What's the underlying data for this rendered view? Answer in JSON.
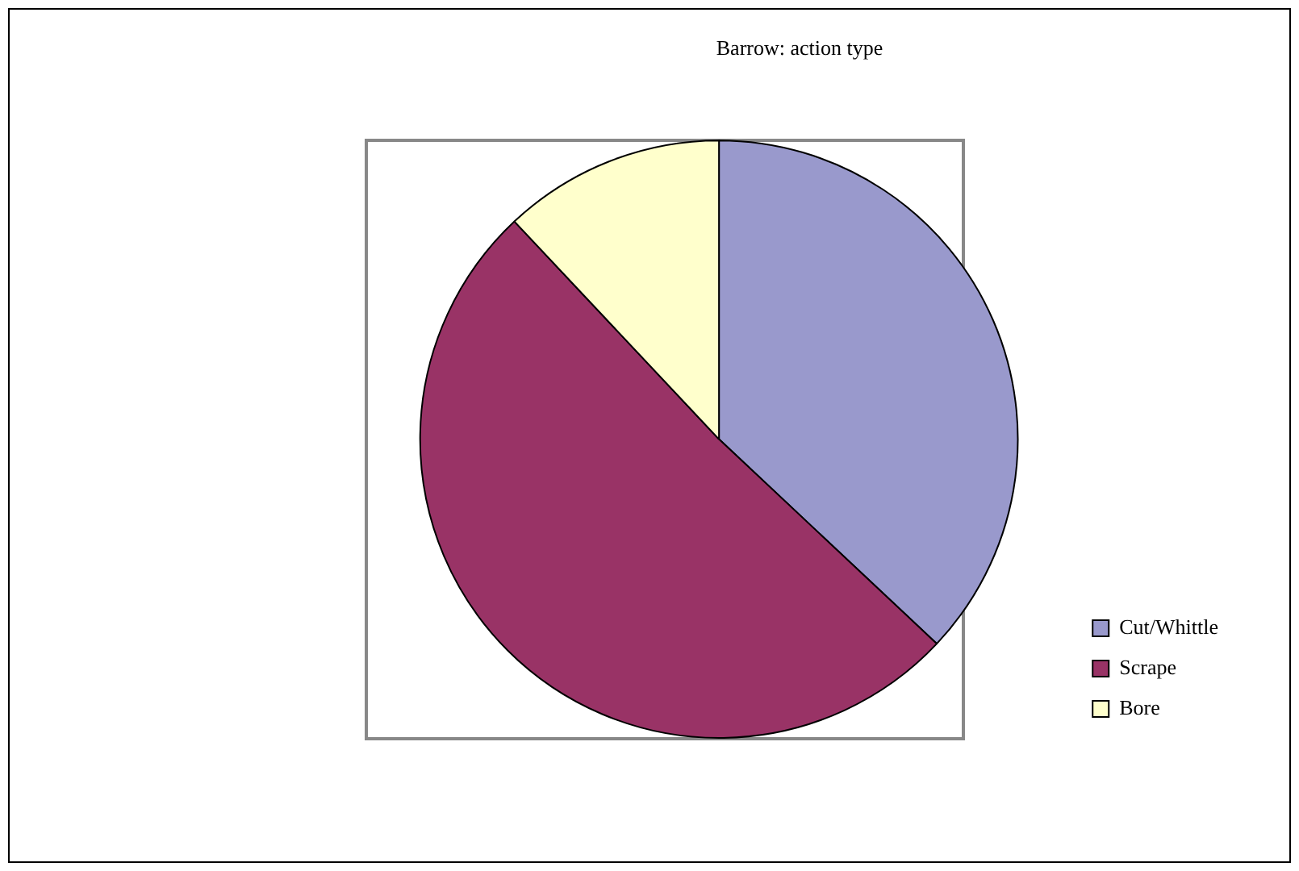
{
  "chart_data": {
    "type": "pie",
    "title": "Barrow: action type",
    "categories": [
      "Cut/Whittle",
      "Scrape",
      "Bore"
    ],
    "values": [
      37,
      51,
      12
    ],
    "colors": [
      "#9999cc",
      "#993366",
      "#ffffcc"
    ],
    "legend": "right"
  }
}
